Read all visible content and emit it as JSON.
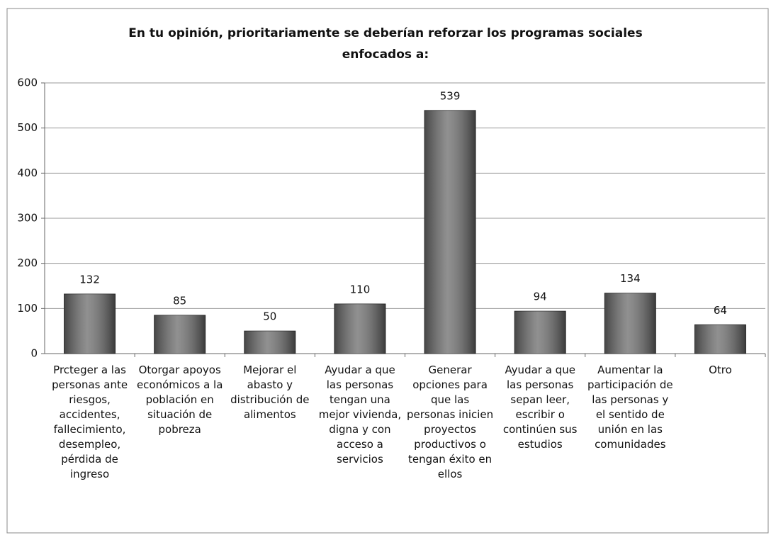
{
  "chart_data": {
    "type": "bar",
    "title": "En tu opinión, prioritariamente se deberían reforzar los programas sociales enfocados a:",
    "categories": [
      "Prcteger a las personas ante riesgos, accidentes, fallecimiento, desempleo, pérdida de ingreso",
      "Otorgar apoyos económicos a la población en situación de pobreza",
      "Mejorar el abasto y distribución de alimentos",
      "Ayudar a que las personas tengan una mejor vivienda, digna y con acceso a servicios",
      "Generar opciones para que las personas inicien proyectos productivos o tengan éxito en ellos",
      "Ayudar a que las personas sepan leer, escribir o continúen sus estudios",
      "Aumentar la participación de las personas y el sentido de unión en las comunidades",
      "Otro"
    ],
    "values": [
      132,
      85,
      50,
      110,
      539,
      94,
      134,
      64
    ],
    "color": "#6b6b6b",
    "ylim": [
      0,
      600
    ],
    "yticks": [
      0,
      100,
      200,
      300,
      400,
      500,
      600
    ],
    "grid": true
  }
}
